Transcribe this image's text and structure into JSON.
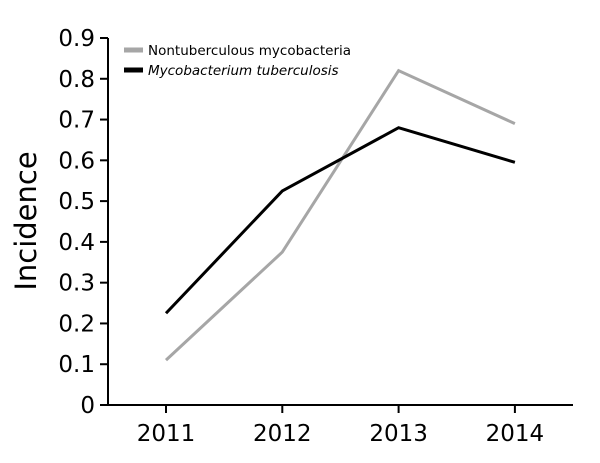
{
  "chart_data": {
    "type": "line",
    "categories": [
      "2011",
      "2012",
      "2013",
      "2014"
    ],
    "ylabel": "Incidence",
    "xlabel": "",
    "title": "",
    "ylim": [
      0,
      0.9
    ],
    "yticks": [
      "0",
      "0.1",
      "0.2",
      "0.3",
      "0.4",
      "0.5",
      "0.6",
      "0.7",
      "0.8",
      "0.9"
    ],
    "grid": false,
    "legend_position": "top-left",
    "series": [
      {
        "name": "Nontuberculous mycobacteria",
        "color": "#a6a6a6",
        "values": [
          0.11,
          0.375,
          0.82,
          0.69
        ]
      },
      {
        "name": "Mycobacterium tuberculosis",
        "color": "#000000",
        "italic": true,
        "values": [
          0.225,
          0.525,
          0.68,
          0.595
        ]
      }
    ]
  }
}
